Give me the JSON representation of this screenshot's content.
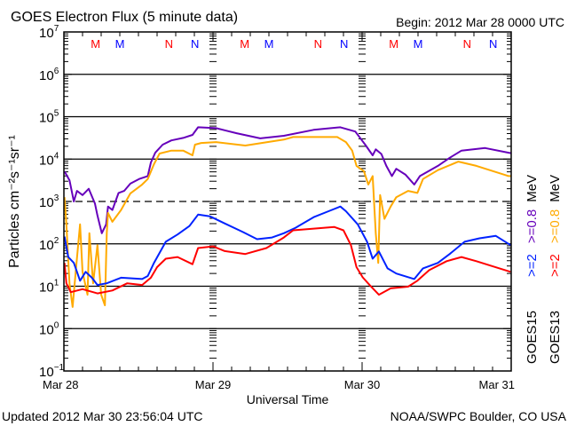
{
  "chart_data": {
    "type": "line",
    "title": "GOES Electron Flux (5 minute data)",
    "begin_label": "Begin: 2012 Mar 28 0000 UTC",
    "xlabel": "Universal Time",
    "ylabel": "Particles cm⁻²s⁻¹sr⁻¹",
    "x_unit": "hours since 2012 Mar 28 0000 UTC",
    "xlim": [
      0,
      72
    ],
    "x_ticks": [
      {
        "hour": 0,
        "label": "Mar 28"
      },
      {
        "hour": 24,
        "label": "Mar 29"
      },
      {
        "hour": 48,
        "label": "Mar 30"
      },
      {
        "hour": 72,
        "label": "Mar 31"
      }
    ],
    "y_scale": "log",
    "ylim_log10": [
      -1,
      7
    ],
    "y_ticks": [
      {
        "base": "10",
        "exp": "7"
      },
      {
        "base": "10",
        "exp": "6"
      },
      {
        "base": "10",
        "exp": "5"
      },
      {
        "base": "10",
        "exp": "4"
      },
      {
        "base": "10",
        "exp": "3"
      },
      {
        "base": "10",
        "exp": "2"
      },
      {
        "base": "10",
        "exp": "1"
      },
      {
        "base": "10",
        "exp": "0"
      },
      {
        "base": "10",
        "exp": "−1"
      }
    ],
    "threshold_log10": 3,
    "grid": "horizontal at each decade",
    "markers": [
      {
        "label": "M",
        "color": "#ff0000",
        "hour": 5.1
      },
      {
        "label": "M",
        "color": "#0000ff",
        "hour": 9.0
      },
      {
        "label": "N",
        "color": "#ff0000",
        "hour": 16.9
      },
      {
        "label": "N",
        "color": "#0000ff",
        "hour": 21.1
      },
      {
        "label": "M",
        "color": "#ff0000",
        "hour": 29.1
      },
      {
        "label": "M",
        "color": "#0000ff",
        "hour": 33.0
      },
      {
        "label": "N",
        "color": "#ff0000",
        "hour": 40.9
      },
      {
        "label": "N",
        "color": "#0000ff",
        "hour": 45.1
      },
      {
        "label": "M",
        "color": "#ff0000",
        "hour": 53.1
      },
      {
        "label": "M",
        "color": "#0000ff",
        "hour": 57.0
      },
      {
        "label": "N",
        "color": "#ff0000",
        "hour": 64.9
      },
      {
        "label": "N",
        "color": "#0000ff",
        "hour": 69.1
      }
    ],
    "legend": {
      "placement": "right",
      "columns": [
        {
          "satellite": "GOES15",
          "unit": "MeV",
          "entries": [
            {
              "label": ">=2",
              "color": "#0022ff"
            },
            {
              "label": ">=0.8",
              "color": "#6600bb"
            }
          ]
        },
        {
          "satellite": "GOES13",
          "unit": "MeV",
          "entries": [
            {
              "label": ">=2",
              "color": "#ff0000"
            },
            {
              "label": ">=0.8",
              "color": "#ffaa00"
            }
          ]
        }
      ]
    },
    "series": [
      {
        "name": "GOES15 >=0.8 MeV",
        "color": "#6600bb",
        "points_hour_log10": [
          [
            0.1,
            3.71
          ],
          [
            0.9,
            3.5
          ],
          [
            1.6,
            3.0
          ],
          [
            2.1,
            3.25
          ],
          [
            3.0,
            3.15
          ],
          [
            4.0,
            3.3
          ],
          [
            5.0,
            2.95
          ],
          [
            5.4,
            2.67
          ],
          [
            6.1,
            2.25
          ],
          [
            6.8,
            2.46
          ],
          [
            7.1,
            2.88
          ],
          [
            7.8,
            2.8
          ],
          [
            8.8,
            3.2
          ],
          [
            9.7,
            3.25
          ],
          [
            10.7,
            3.42
          ],
          [
            12.1,
            3.53
          ],
          [
            13.5,
            3.6
          ],
          [
            14.0,
            3.92
          ],
          [
            14.7,
            4.15
          ],
          [
            15.9,
            4.34
          ],
          [
            17.3,
            4.44
          ],
          [
            19.2,
            4.5
          ],
          [
            20.7,
            4.57
          ],
          [
            21.6,
            4.75
          ],
          [
            24.5,
            4.73
          ],
          [
            27.8,
            4.61
          ],
          [
            31.6,
            4.49
          ],
          [
            35.4,
            4.55
          ],
          [
            40.2,
            4.69
          ],
          [
            44.5,
            4.75
          ],
          [
            46.9,
            4.65
          ],
          [
            48.5,
            4.34
          ],
          [
            49.7,
            4.09
          ],
          [
            50.2,
            4.23
          ],
          [
            51.1,
            4.12
          ],
          [
            51.9,
            3.84
          ],
          [
            52.8,
            3.6
          ],
          [
            53.5,
            3.77
          ],
          [
            55.0,
            3.63
          ],
          [
            56.4,
            3.4
          ],
          [
            57.3,
            3.6
          ],
          [
            60.2,
            3.84
          ],
          [
            62.1,
            4.03
          ],
          [
            64.0,
            4.2
          ],
          [
            67.8,
            4.26
          ],
          [
            71.6,
            4.15
          ],
          [
            72,
            4.14
          ]
        ]
      },
      {
        "name": "GOES13 >=0.8 MeV",
        "color": "#ffaa00",
        "points_hour_log10": [
          [
            0.1,
            3.1
          ],
          [
            0.4,
            2.46
          ],
          [
            0.9,
            1.07
          ],
          [
            1.4,
            0.51
          ],
          [
            1.9,
            1.34
          ],
          [
            2.6,
            2.46
          ],
          [
            3.0,
            1.34
          ],
          [
            3.8,
            0.8
          ],
          [
            4.1,
            2.25
          ],
          [
            4.7,
            1.07
          ],
          [
            5.4,
            1.97
          ],
          [
            6.0,
            0.8
          ],
          [
            6.6,
            0.55
          ],
          [
            6.9,
            2.25
          ],
          [
            7.1,
            2.73
          ],
          [
            7.8,
            2.52
          ],
          [
            9.2,
            2.8
          ],
          [
            10.7,
            3.19
          ],
          [
            12.6,
            3.4
          ],
          [
            13.5,
            3.53
          ],
          [
            14.5,
            3.88
          ],
          [
            15.4,
            4.13
          ],
          [
            17.3,
            4.2
          ],
          [
            19.2,
            4.2
          ],
          [
            20.7,
            4.09
          ],
          [
            21.1,
            4.34
          ],
          [
            22.1,
            4.38
          ],
          [
            24.5,
            4.4
          ],
          [
            29.2,
            4.32
          ],
          [
            35.4,
            4.46
          ],
          [
            36.9,
            4.52
          ],
          [
            44.0,
            4.52
          ],
          [
            45.4,
            4.4
          ],
          [
            46.4,
            4.2
          ],
          [
            47.1,
            3.84
          ],
          [
            48.3,
            3.71
          ],
          [
            49.0,
            3.4
          ],
          [
            49.7,
            3.6
          ],
          [
            50.2,
            2.25
          ],
          [
            50.6,
            1.55
          ],
          [
            50.9,
            3.15
          ],
          [
            51.6,
            2.59
          ],
          [
            52.6,
            2.88
          ],
          [
            53.5,
            3.1
          ],
          [
            55.4,
            3.25
          ],
          [
            56.9,
            3.2
          ],
          [
            57.8,
            3.53
          ],
          [
            60.2,
            3.74
          ],
          [
            63.5,
            3.94
          ],
          [
            66.4,
            3.84
          ],
          [
            71.6,
            3.6
          ],
          [
            72,
            3.6
          ]
        ]
      },
      {
        "name": "GOES15 >=2 MeV",
        "color": "#0022ff",
        "points_hour_log10": [
          [
            0.1,
            2.17
          ],
          [
            0.7,
            1.69
          ],
          [
            1.6,
            1.55
          ],
          [
            2.6,
            1.13
          ],
          [
            3.5,
            1.34
          ],
          [
            4.5,
            1.2
          ],
          [
            5.4,
            1.03
          ],
          [
            6.9,
            1.07
          ],
          [
            9.2,
            1.2
          ],
          [
            12.6,
            1.17
          ],
          [
            13.5,
            1.24
          ],
          [
            14.5,
            1.55
          ],
          [
            16.4,
            2.05
          ],
          [
            18.3,
            2.22
          ],
          [
            20.2,
            2.42
          ],
          [
            21.6,
            2.69
          ],
          [
            23.5,
            2.65
          ],
          [
            25.9,
            2.48
          ],
          [
            28.8,
            2.28
          ],
          [
            31.1,
            2.11
          ],
          [
            33.5,
            2.15
          ],
          [
            35.4,
            2.25
          ],
          [
            37.3,
            2.38
          ],
          [
            40.2,
            2.63
          ],
          [
            42.6,
            2.77
          ],
          [
            44.5,
            2.88
          ],
          [
            45.4,
            2.77
          ],
          [
            47.3,
            2.46
          ],
          [
            48.8,
            2.05
          ],
          [
            49.7,
            1.65
          ],
          [
            50.7,
            1.82
          ],
          [
            52.1,
            1.42
          ],
          [
            53.5,
            1.3
          ],
          [
            56.4,
            1.17
          ],
          [
            57.8,
            1.42
          ],
          [
            60.2,
            1.55
          ],
          [
            62.1,
            1.76
          ],
          [
            64.5,
            2.05
          ],
          [
            66.9,
            2.13
          ],
          [
            69.5,
            2.19
          ],
          [
            71.9,
            1.97
          ]
        ]
      },
      {
        "name": "GOES13 >=2 MeV",
        "color": "#ff0000",
        "points_hour_log10": [
          [
            0.1,
            1.55
          ],
          [
            0.4,
            1.07
          ],
          [
            1.1,
            0.86
          ],
          [
            3.0,
            0.93
          ],
          [
            5.4,
            0.83
          ],
          [
            7.8,
            0.9
          ],
          [
            10.2,
            1.07
          ],
          [
            12.6,
            1.03
          ],
          [
            14.0,
            1.2
          ],
          [
            15.0,
            1.45
          ],
          [
            16.4,
            1.65
          ],
          [
            18.3,
            1.69
          ],
          [
            20.7,
            1.52
          ],
          [
            21.6,
            1.9
          ],
          [
            24.0,
            1.94
          ],
          [
            25.9,
            1.83
          ],
          [
            29.2,
            1.76
          ],
          [
            32.6,
            1.9
          ],
          [
            35.4,
            2.15
          ],
          [
            36.9,
            2.32
          ],
          [
            41.1,
            2.37
          ],
          [
            43.5,
            2.4
          ],
          [
            45.0,
            2.32
          ],
          [
            46.2,
            1.97
          ],
          [
            47.1,
            1.45
          ],
          [
            48.1,
            1.21
          ],
          [
            49.2,
            1.03
          ],
          [
            50.7,
            0.8
          ],
          [
            52.6,
            0.95
          ],
          [
            55.4,
            0.99
          ],
          [
            56.9,
            1.13
          ],
          [
            58.8,
            1.38
          ],
          [
            61.6,
            1.59
          ],
          [
            64.0,
            1.69
          ],
          [
            66.4,
            1.59
          ],
          [
            68.8,
            1.48
          ],
          [
            71.9,
            1.34
          ]
        ]
      }
    ]
  },
  "footer": {
    "updated": "Updated 2012 Mar 30 23:56:04 UTC",
    "credit": "NOAA/SWPC Boulder, CO USA"
  }
}
